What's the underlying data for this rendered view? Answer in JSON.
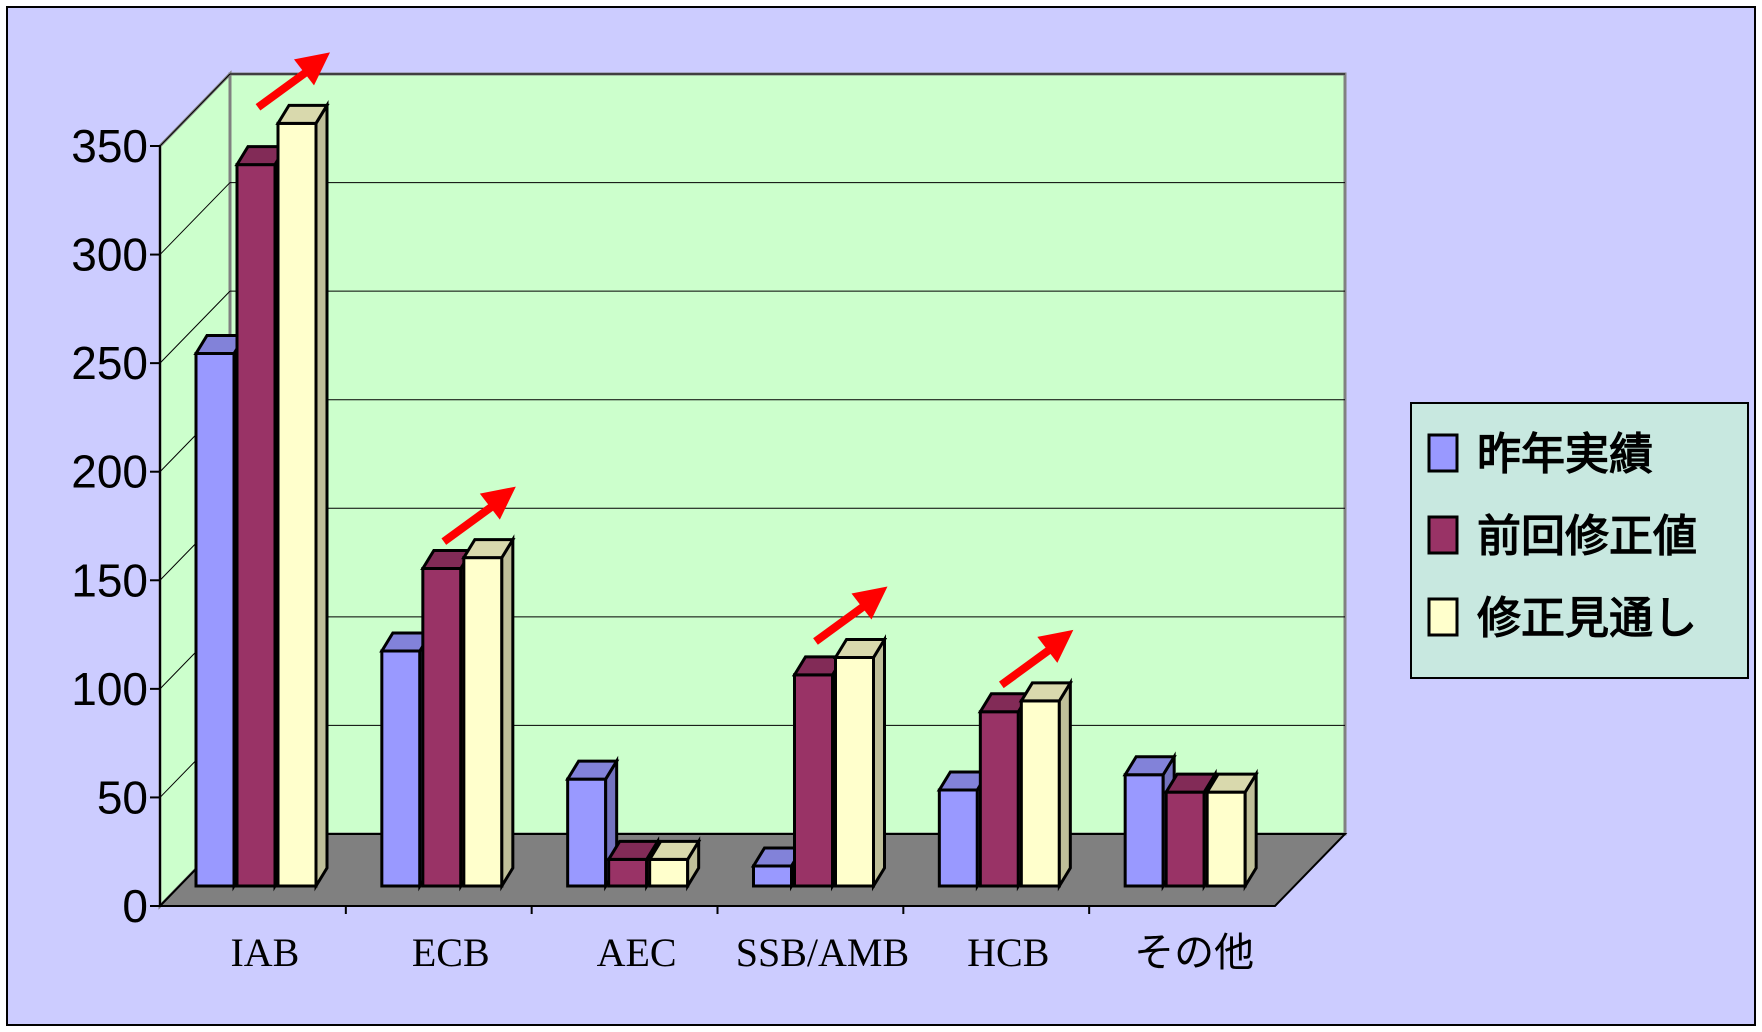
{
  "colors": {
    "background": "#ccccff",
    "plot_back_wall": "#ccffcc",
    "floor": "#808080",
    "arrow": "#ff0000",
    "legend_bg": "#c8e8e0"
  },
  "chart_data": {
    "type": "bar",
    "subtype": "3d-cylinder",
    "categories": [
      "IAB",
      "ECB",
      "AEC",
      "SSB/AMB",
      "HCB",
      "その他"
    ],
    "series": [
      {
        "name": "昨年実績",
        "color": "#9999ff",
        "values": [
          248,
          111,
          52,
          12,
          47,
          54
        ]
      },
      {
        "name": "前回修正値",
        "color": "#993366",
        "values": [
          335,
          149,
          15,
          100,
          83,
          46
        ]
      },
      {
        "name": "修正見通し",
        "color": "#ffffcc",
        "values": [
          354,
          154,
          15,
          108,
          88,
          46
        ]
      }
    ],
    "yaxis": {
      "min": 0,
      "max": 350,
      "step": 50,
      "ticks": [
        "0",
        "50",
        "100",
        "150",
        "200",
        "250",
        "300",
        "350"
      ]
    },
    "gridlines": true,
    "legend_position": "right",
    "increase_arrows_on": [
      "IAB",
      "ECB",
      "SSB/AMB",
      "HCB"
    ]
  }
}
